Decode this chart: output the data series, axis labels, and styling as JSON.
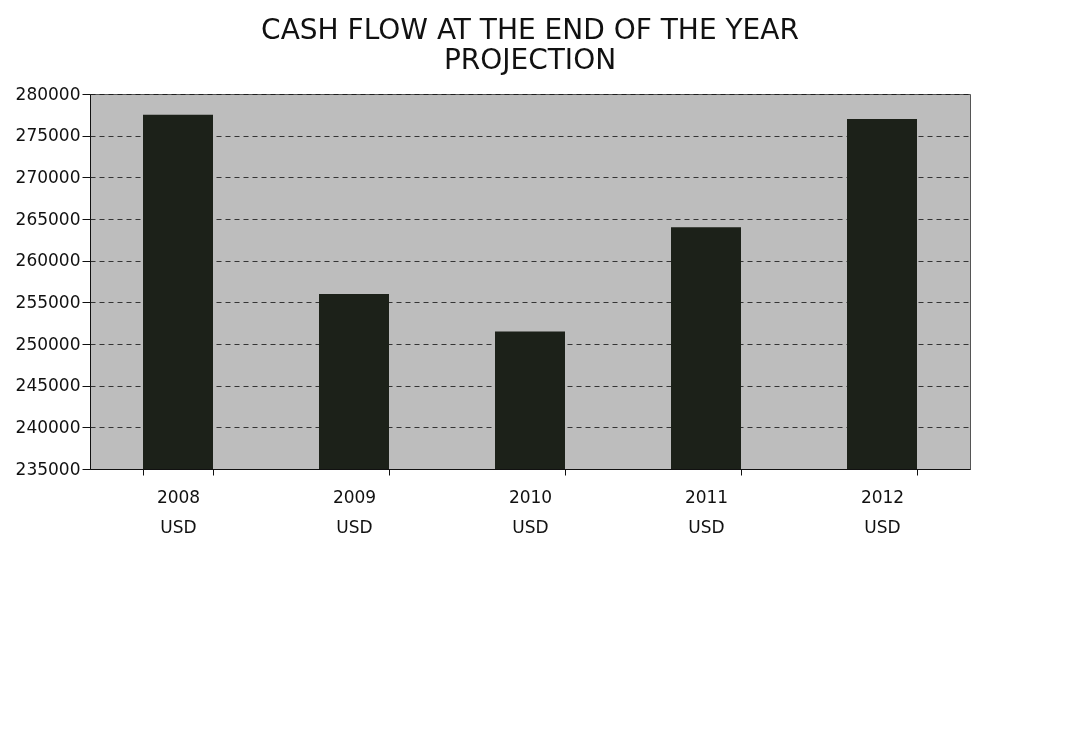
{
  "chart_data": {
    "type": "bar",
    "title": [
      "CASH FLOW AT THE END OF THE YEAR",
      "PROJECTION"
    ],
    "categories": [
      "2008 USD",
      "2009 USD",
      "2010 USD",
      "2011 USD",
      "2012 USD"
    ],
    "values": [
      277500,
      256000,
      251500,
      264000,
      277000
    ],
    "color": "#1c2119",
    "ylim": [
      235000,
      280000
    ],
    "yticks": [
      235000,
      240000,
      245000,
      250000,
      255000,
      260000,
      265000,
      270000,
      275000,
      280000
    ],
    "grid": "y"
  }
}
